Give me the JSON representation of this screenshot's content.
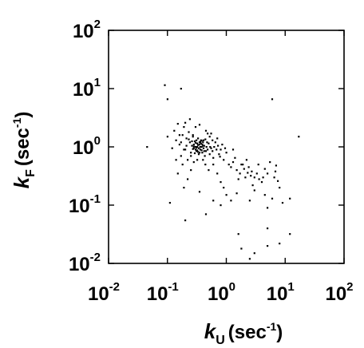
{
  "chart_data": {
    "type": "scatter",
    "title": "",
    "xlabel": {
      "symbol": "k",
      "subscript": "U",
      "unit_prefix": "(sec",
      "unit_exp": "-1",
      "unit_suffix": ")"
    },
    "ylabel": {
      "symbol": "k",
      "subscript": "F",
      "unit_prefix": "(sec",
      "unit_exp": "-1",
      "unit_suffix": ")"
    },
    "xscale": "log",
    "yscale": "log",
    "xlim": [
      0.01,
      100
    ],
    "ylim": [
      0.01,
      100
    ],
    "grid": false,
    "x_ticks": [
      {
        "base": "10",
        "exp": "-2"
      },
      {
        "base": "10",
        "exp": "-1"
      },
      {
        "base": "10",
        "exp": "0"
      },
      {
        "base": "10",
        "exp": "1"
      },
      {
        "base": "10",
        "exp": "2"
      }
    ],
    "y_ticks": [
      {
        "base": "10",
        "exp": "-2"
      },
      {
        "base": "10",
        "exp": "-1"
      },
      {
        "base": "10",
        "exp": "0"
      },
      {
        "base": "10",
        "exp": "1"
      },
      {
        "base": "10",
        "exp": "2"
      }
    ],
    "point_color": "#000000",
    "points": [
      [
        0.09,
        11.5
      ],
      [
        0.1,
        6.6
      ],
      [
        0.17,
        10.0
      ],
      [
        0.045,
        1.0
      ],
      [
        6.0,
        6.6
      ],
      [
        17.0,
        1.5
      ],
      [
        0.1,
        1.5
      ],
      [
        0.12,
        0.95
      ],
      [
        0.13,
        1.9
      ],
      [
        0.14,
        1.3
      ],
      [
        0.15,
        2.5
      ],
      [
        0.16,
        1.1
      ],
      [
        0.17,
        0.7
      ],
      [
        0.18,
        1.6
      ],
      [
        0.19,
        2.2
      ],
      [
        0.2,
        0.9
      ],
      [
        0.21,
        1.4
      ],
      [
        0.22,
        0.6
      ],
      [
        0.23,
        1.8
      ],
      [
        0.24,
        1.2
      ],
      [
        0.25,
        0.8
      ],
      [
        0.26,
        1.05
      ],
      [
        0.27,
        1.5
      ],
      [
        0.28,
        0.95
      ],
      [
        0.29,
        1.25
      ],
      [
        0.3,
        1.0
      ],
      [
        0.31,
        0.85
      ],
      [
        0.32,
        1.15
      ],
      [
        0.33,
        1.4
      ],
      [
        0.34,
        0.75
      ],
      [
        0.35,
        1.1
      ],
      [
        0.36,
        0.9
      ],
      [
        0.37,
        1.3
      ],
      [
        0.38,
        1.0
      ],
      [
        0.39,
        0.8
      ],
      [
        0.4,
        1.2
      ],
      [
        0.41,
        0.95
      ],
      [
        0.42,
        1.05
      ],
      [
        0.43,
        0.7
      ],
      [
        0.44,
        1.35
      ],
      [
        0.45,
        0.85
      ],
      [
        0.46,
        1.0
      ],
      [
        0.48,
        0.9
      ],
      [
        0.5,
        1.15
      ],
      [
        0.52,
        0.75
      ],
      [
        0.55,
        0.95
      ],
      [
        0.58,
        1.3
      ],
      [
        0.6,
        0.65
      ],
      [
        0.28,
        1.1
      ],
      [
        0.3,
        0.9
      ],
      [
        0.32,
        1.0
      ],
      [
        0.33,
        0.82
      ],
      [
        0.35,
        1.2
      ],
      [
        0.36,
        1.0
      ],
      [
        0.38,
        0.88
      ],
      [
        0.4,
        1.05
      ],
      [
        0.31,
        1.3
      ],
      [
        0.29,
        0.78
      ],
      [
        0.34,
        0.95
      ],
      [
        0.37,
        1.15
      ],
      [
        0.27,
        0.92
      ],
      [
        0.26,
        1.25
      ],
      [
        0.39,
        1.1
      ],
      [
        0.42,
        0.85
      ],
      [
        0.33,
        1.08
      ],
      [
        0.3,
        1.18
      ],
      [
        0.35,
        0.8
      ],
      [
        0.31,
        0.97
      ],
      [
        0.36,
        1.22
      ],
      [
        0.32,
        0.87
      ],
      [
        0.28,
        1.02
      ],
      [
        0.38,
        1.28
      ],
      [
        0.2,
        2.6
      ],
      [
        0.24,
        3.0
      ],
      [
        0.3,
        2.2
      ],
      [
        0.35,
        2.4
      ],
      [
        0.45,
        1.9
      ],
      [
        0.55,
        1.7
      ],
      [
        0.7,
        1.4
      ],
      [
        0.8,
        0.9
      ],
      [
        0.9,
        0.6
      ],
      [
        1.0,
        0.8
      ],
      [
        1.1,
        0.5
      ],
      [
        1.2,
        0.45
      ],
      [
        1.3,
        0.55
      ],
      [
        1.5,
        0.4
      ],
      [
        1.7,
        0.35
      ],
      [
        1.9,
        0.5
      ],
      [
        2.1,
        0.3
      ],
      [
        2.4,
        0.45
      ],
      [
        2.7,
        0.38
      ],
      [
        3.0,
        0.3
      ],
      [
        3.5,
        0.5
      ],
      [
        4.0,
        0.25
      ],
      [
        4.5,
        0.42
      ],
      [
        5.0,
        0.35
      ],
      [
        5.5,
        0.55
      ],
      [
        6.5,
        0.3
      ],
      [
        7.0,
        0.48
      ],
      [
        8.0,
        0.2
      ],
      [
        1.4,
        0.65
      ],
      [
        1.6,
        0.28
      ],
      [
        2.2,
        0.6
      ],
      [
        2.8,
        0.22
      ],
      [
        3.3,
        0.35
      ],
      [
        0.6,
        0.5
      ],
      [
        0.7,
        0.35
      ],
      [
        0.8,
        0.25
      ],
      [
        0.5,
        0.4
      ],
      [
        0.25,
        0.4
      ],
      [
        0.18,
        0.5
      ],
      [
        0.15,
        0.35
      ],
      [
        0.9,
        0.2
      ],
      [
        1.0,
        0.15
      ],
      [
        1.2,
        0.12
      ],
      [
        2.5,
        0.12
      ],
      [
        3.0,
        0.18
      ],
      [
        4.5,
        0.15
      ],
      [
        6.0,
        0.13
      ],
      [
        9.0,
        0.11
      ],
      [
        12.0,
        0.13
      ],
      [
        0.6,
        0.12
      ],
      [
        0.8,
        0.1
      ],
      [
        5.0,
        0.09
      ],
      [
        1.5,
        0.16
      ],
      [
        0.45,
        0.07
      ],
      [
        0.2,
        0.055
      ],
      [
        0.35,
        0.17
      ],
      [
        1.6,
        0.032
      ],
      [
        1.8,
        0.018
      ],
      [
        2.5,
        0.012
      ],
      [
        5.0,
        0.04
      ],
      [
        8.0,
        0.022
      ],
      [
        12.0,
        0.032
      ],
      [
        5.0,
        0.02
      ],
      [
        3.0,
        0.015
      ],
      [
        0.11,
        0.11
      ],
      [
        0.14,
        0.6
      ],
      [
        0.95,
        0.95
      ],
      [
        0.85,
        1.1
      ],
      [
        0.75,
        0.75
      ],
      [
        1.3,
        0.9
      ],
      [
        0.65,
        1.2
      ],
      [
        0.58,
        0.85
      ],
      [
        0.22,
        0.28
      ],
      [
        0.19,
        0.2
      ],
      [
        0.28,
        0.55
      ],
      [
        0.32,
        0.6
      ],
      [
        0.4,
        0.6
      ],
      [
        0.44,
        0.5
      ],
      [
        0.52,
        1.5
      ],
      [
        0.48,
        1.7
      ],
      [
        0.62,
        1.0
      ],
      [
        0.68,
        0.9
      ],
      [
        0.72,
        1.05
      ],
      [
        0.78,
        0.68
      ],
      [
        1.8,
        0.5
      ],
      [
        2.0,
        0.42
      ],
      [
        2.3,
        0.36
      ],
      [
        2.6,
        0.32
      ],
      [
        3.6,
        0.28
      ],
      [
        4.2,
        0.3
      ],
      [
        6.8,
        0.38
      ],
      [
        7.5,
        0.26
      ],
      [
        0.16,
        1.6
      ],
      [
        0.17,
        1.2
      ],
      [
        0.19,
        0.9
      ],
      [
        0.21,
        1.05
      ],
      [
        0.23,
        1.35
      ],
      [
        0.25,
        0.7
      ],
      [
        0.27,
        1.6
      ],
      [
        0.41,
        1.3
      ],
      [
        0.47,
        1.2
      ],
      [
        0.53,
        1.0
      ]
    ]
  }
}
